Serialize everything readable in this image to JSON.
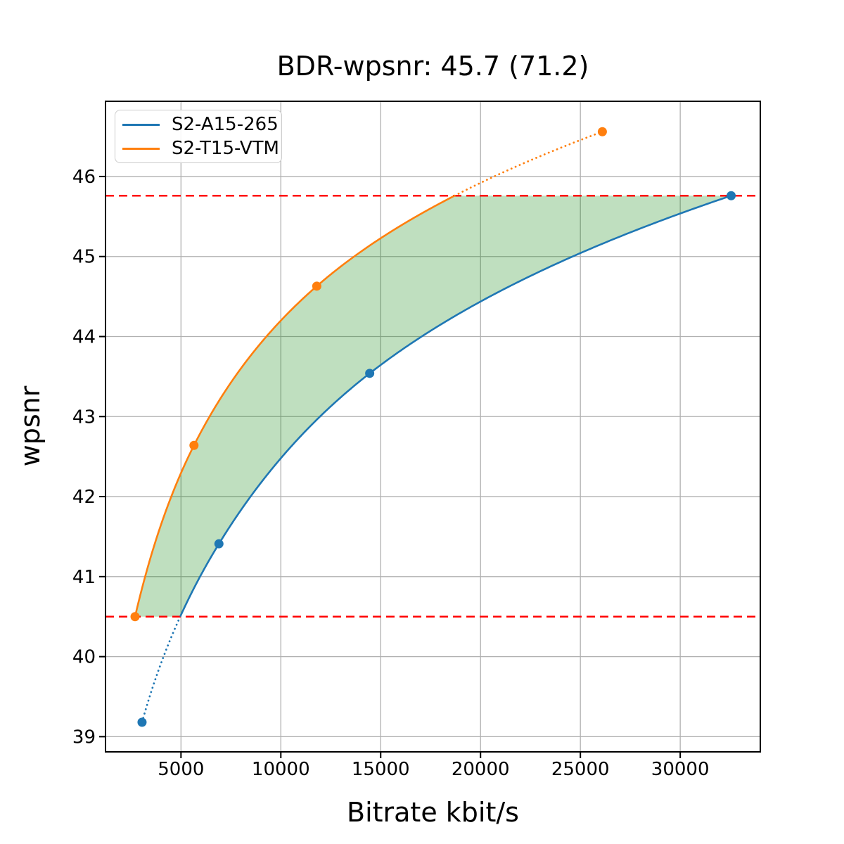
{
  "chart_data": {
    "type": "line",
    "title": "BDR-wpsnr: 45.7 (71.2)",
    "xlabel": "Bitrate kbit/s",
    "ylabel": "wpsnr",
    "xlim": [
      1220,
      34010
    ],
    "ylim": [
      38.81,
      46.94
    ],
    "x_ticks": [
      5000,
      10000,
      15000,
      20000,
      25000,
      30000
    ],
    "y_ticks": [
      39,
      40,
      41,
      42,
      43,
      44,
      45,
      46
    ],
    "grid": true,
    "grid_color": "#b0b0b0",
    "legend_position": "upper-left",
    "interpolation": "pchip-on-log-bitrate",
    "series": [
      {
        "name": "S2-A15-265",
        "color": "#1f77b4",
        "points": [
          [
            3050,
            39.18
          ],
          [
            6900,
            41.41
          ],
          [
            14450,
            43.54
          ],
          [
            32550,
            45.76
          ]
        ]
      },
      {
        "name": "S2-T15-VTM",
        "color": "#ff7f0e",
        "points": [
          [
            2700,
            40.5
          ],
          [
            5650,
            42.64
          ],
          [
            11800,
            44.63
          ],
          [
            26100,
            46.56
          ]
        ]
      }
    ],
    "bd_interval": {
      "low": 40.5,
      "high": 45.76,
      "line_color": "#ff0000",
      "line_style": "dashed"
    },
    "shaded_region": {
      "fill_color": "rgba(0,128,0,0.25)",
      "description": "BD integration area between the two rate-distortion curves"
    }
  }
}
